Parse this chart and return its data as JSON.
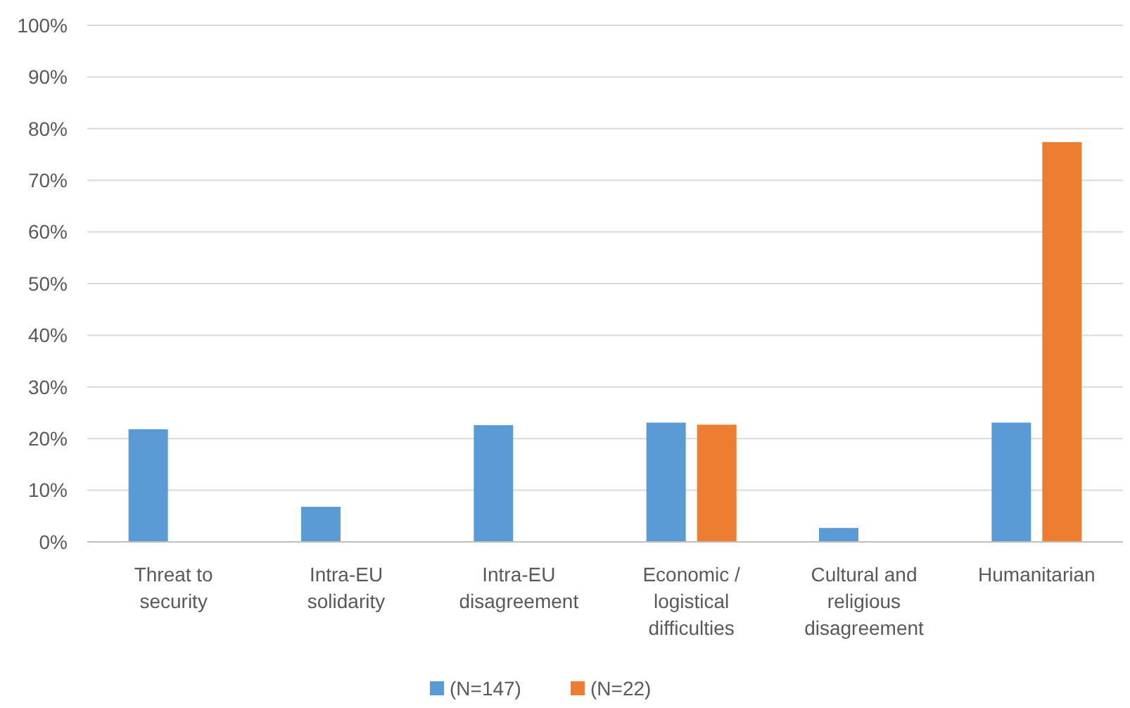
{
  "chart_data": {
    "type": "bar",
    "categories": [
      "Threat to security",
      "Intra-EU solidarity",
      "Intra-EU disagreement",
      "Economic / logistical difficulties",
      "Cultural and religious disagreement",
      "Humanitarian"
    ],
    "series": [
      {
        "name": "(N=147)",
        "color": "#5b9bd5",
        "values": [
          21.8,
          6.8,
          22.6,
          23.1,
          2.7,
          23.1
        ]
      },
      {
        "name": "(N=22)",
        "color": "#ed7d31",
        "values": [
          null,
          null,
          null,
          22.7,
          null,
          77.4
        ]
      }
    ],
    "ylim": [
      0,
      100
    ],
    "yticks": [
      {
        "value": 0,
        "label": "0%"
      },
      {
        "value": 10,
        "label": "10%"
      },
      {
        "value": 20,
        "label": "20%"
      },
      {
        "value": 30,
        "label": "30%"
      },
      {
        "value": 40,
        "label": "40%"
      },
      {
        "value": 50,
        "label": "50%"
      },
      {
        "value": 60,
        "label": "60%"
      },
      {
        "value": 70,
        "label": "70%"
      },
      {
        "value": 80,
        "label": "80%"
      },
      {
        "value": 90,
        "label": "90%"
      },
      {
        "value": 100,
        "label": "100%"
      }
    ],
    "grid": "y",
    "legend": "bottom"
  }
}
